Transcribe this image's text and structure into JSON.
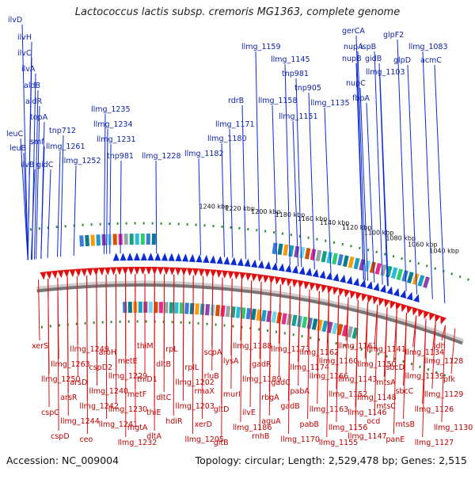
{
  "title": "Lactococcus lactis subsp. cremoris MG1363, complete genome",
  "footer": {
    "accession": "Accession: NC_009004",
    "topology": "Topology: circular; Length: 2,529,478 bp; Genes: 2,515"
  },
  "colors": {
    "forward": "#0a2bd6",
    "reverse": "#e01010",
    "backbone": "#777777",
    "ticks": "#2e8b2e"
  },
  "kbp_labels": [
    "1040 kbp",
    "1060 kbp",
    "1080 kbp",
    "1100 kbp",
    "1120 kbp",
    "1140 kbp",
    "1160 kbp",
    "1180 kbp",
    "1200 kbp",
    "1220 kbp",
    "1240 kbp"
  ],
  "forward_genes": [
    "ilvD",
    "ilvH",
    "ilvC",
    "ilvA",
    "aldB",
    "aldR",
    "topA",
    "leuC",
    "smf",
    "leuB",
    "ilvB",
    "gidC",
    "tnp712",
    "llmg_1261",
    "llmg_1252",
    "llmg_1235",
    "llmg_1234",
    "llmg_1231",
    "tnp981",
    "llmg_1228",
    "llmg_1182",
    "llmg_1180",
    "llmg_1171",
    "rdrB",
    "llmg_1158",
    "llmg_1159",
    "llmg_1145",
    "tnp981",
    "tnp905",
    "llmg_1151",
    "llmg_1135",
    "gerCA",
    "nupA",
    "ispB",
    "nupB",
    "gidB",
    "glpF2",
    "llmg_1083",
    "glpD",
    "acmC",
    "llmg_1103",
    "nupC",
    "fbpA"
  ],
  "reverse_genes": [
    "xerS",
    "llmg_1250",
    "cspC",
    "cspD",
    "llmg_1263",
    "arsR",
    "llmg_1244",
    "llmg_1249",
    "arsD",
    "llmg_1242",
    "ceo",
    "cspD2",
    "llmg_1240",
    "llmg_1241",
    "aroH",
    "llmg_1229",
    "llmg_1230",
    "llmg_1232",
    "metE",
    "metF",
    "mgtA",
    "thiM",
    "thiD1",
    "thiE",
    "dltA",
    "dltB",
    "dltC",
    "hdiR",
    "rpL",
    "llmg_1202",
    "llmg_1203",
    "llmg_1205",
    "rplL",
    "rmaX",
    "xerD",
    "scpA",
    "rluB",
    "gltD",
    "gltB",
    "lysA",
    "murI",
    "llmg_1186",
    "llmg_1188",
    "llmg_1189",
    "ilvE",
    "rnhB",
    "gadR",
    "rbgA",
    "aguA",
    "llmg_1173",
    "gadC",
    "gadB",
    "llmg_1170",
    "llmg_1174",
    "pabA",
    "pabB",
    "llmg_1162",
    "llmg_1166",
    "llmg_1163",
    "llmg_1155",
    "llmg_1160",
    "llmg_1152",
    "llmg_1156",
    "llmg_1161",
    "llmg_1143",
    "llmg_1146",
    "llmg_1147",
    "llmg_1150",
    "llmg_1148",
    "ocd",
    "llmg_1141",
    "mtsA",
    "mtsC",
    "panE",
    "sbcD",
    "sbcC",
    "mtsB",
    "llmg_1134",
    "llmg_1139",
    "llmg_1126",
    "llmg_1127",
    "llmg_1128",
    "llmg_1129",
    "llmg_1130",
    "ldh",
    "pfk"
  ]
}
